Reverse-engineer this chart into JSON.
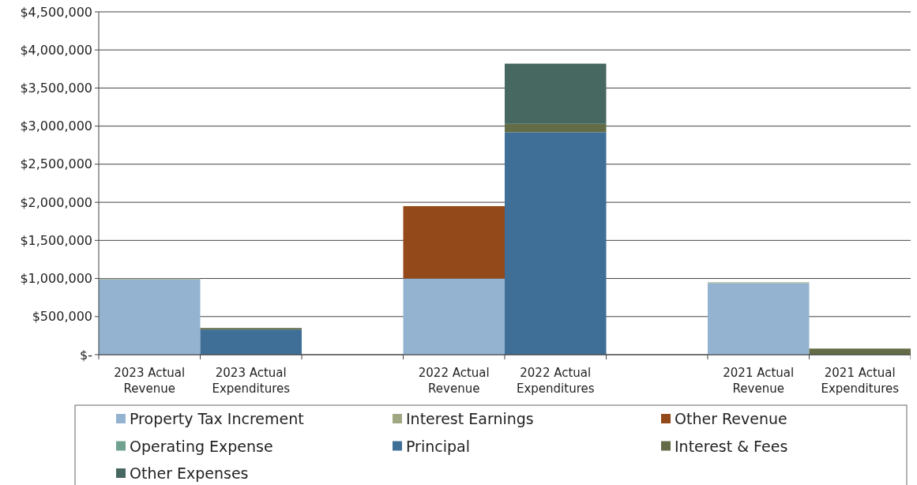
{
  "chart_data": {
    "type": "bar",
    "stacked": true,
    "categories": [
      "2023 Actual Revenue",
      "2023 Actual Expenditures",
      null,
      "2022 Actual Revenue",
      "2022 Actual Expenditures",
      null,
      "2021 Actual Revenue",
      "2021 Actual Expenditures"
    ],
    "series": [
      {
        "name": "Property Tax Increment",
        "color": "#93b3d1",
        "values": [
          990000,
          null,
          null,
          1000000,
          null,
          null,
          940000,
          null
        ]
      },
      {
        "name": "Interest Earnings",
        "color": "#9fa882",
        "values": [
          10000,
          null,
          null,
          null,
          null,
          null,
          10000,
          null
        ]
      },
      {
        "name": "Other Revenue",
        "color": "#93491a",
        "values": [
          null,
          null,
          null,
          950000,
          null,
          null,
          null,
          null
        ]
      },
      {
        "name": "Operating Expense",
        "color": "#6fa390",
        "values": [
          null,
          null,
          null,
          null,
          null,
          null,
          null,
          null
        ]
      },
      {
        "name": "Principal",
        "color": "#3f6f96",
        "values": [
          null,
          330000,
          null,
          null,
          2920000,
          null,
          null,
          null
        ]
      },
      {
        "name": "Interest & Fees",
        "color": "#636c46",
        "values": [
          null,
          20000,
          null,
          null,
          110000,
          null,
          null,
          80000
        ]
      },
      {
        "name": "Other Expenses",
        "color": "#466860",
        "values": [
          null,
          null,
          null,
          null,
          790000,
          null,
          null,
          null
        ]
      }
    ],
    "ylim": [
      0,
      4500000
    ],
    "yticks": [
      {
        "value": 0,
        "label": "$-"
      },
      {
        "value": 500000,
        "label": "$500,000"
      },
      {
        "value": 1000000,
        "label": "$1,000,000"
      },
      {
        "value": 1500000,
        "label": "$1,500,000"
      },
      {
        "value": 2000000,
        "label": "$2,000,000"
      },
      {
        "value": 2500000,
        "label": "$2,500,000"
      },
      {
        "value": 3000000,
        "label": "$3,000,000"
      },
      {
        "value": 3500000,
        "label": "$3,500,000"
      },
      {
        "value": 4000000,
        "label": "$4,000,000"
      },
      {
        "value": 4500000,
        "label": "$4,500,000"
      }
    ],
    "grid": "y",
    "legend": "bottom"
  }
}
